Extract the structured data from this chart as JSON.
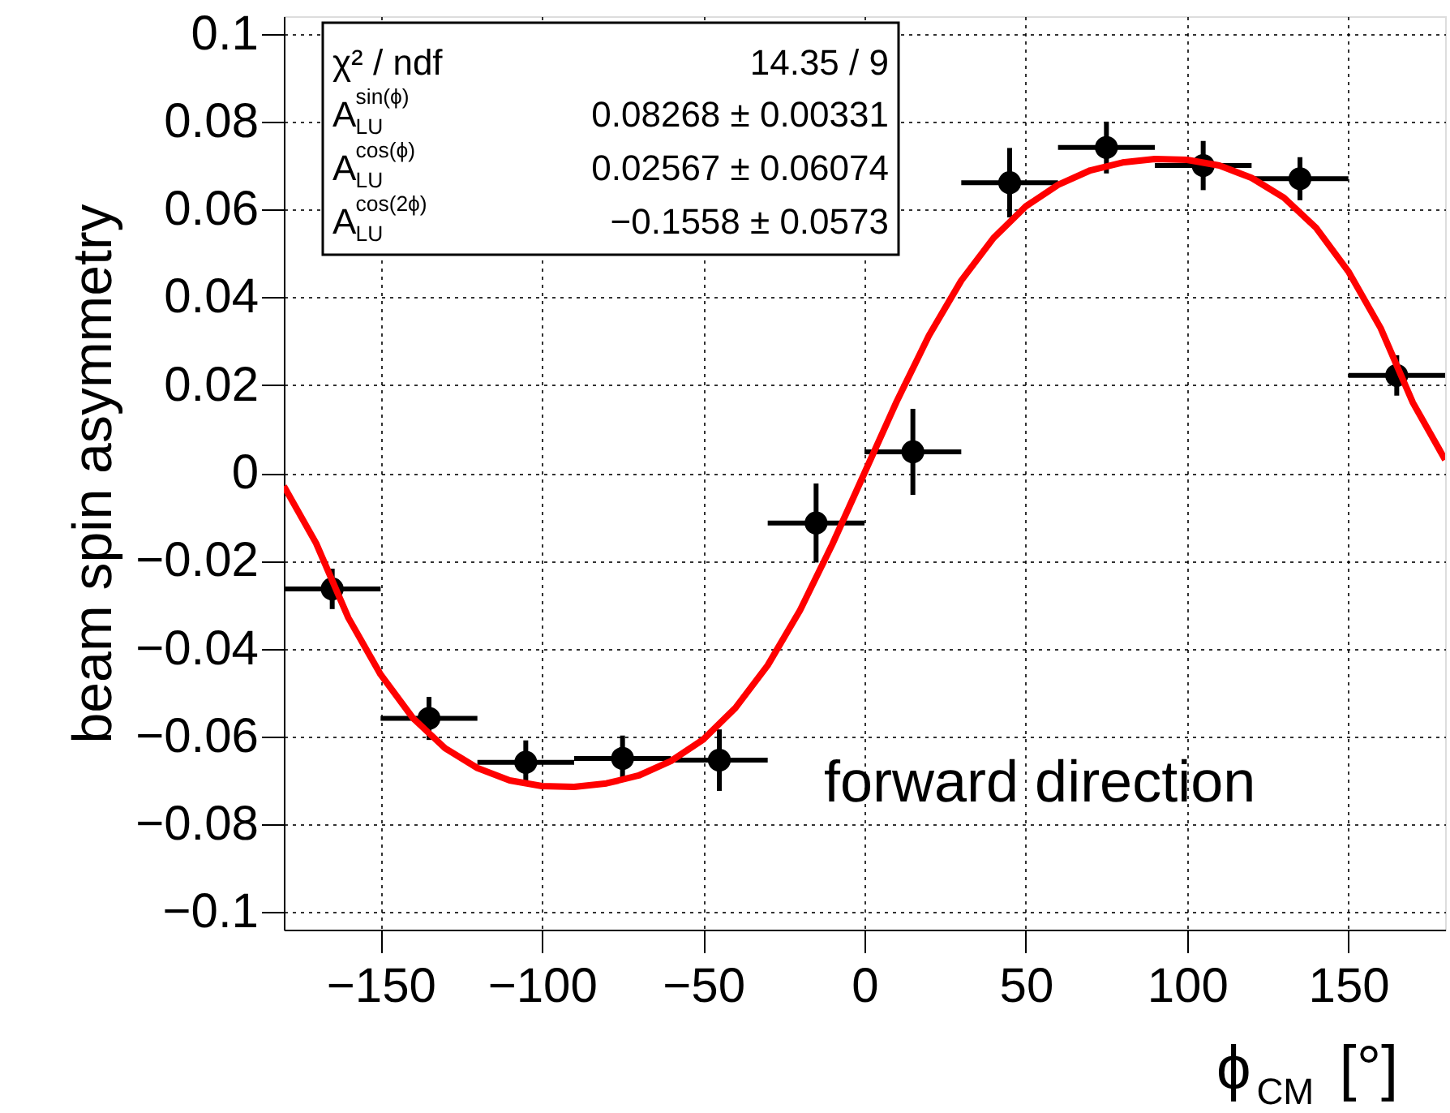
{
  "chart_data": {
    "type": "scatter",
    "xlabel": "ϕ$_{CM}$ [°]",
    "ylabel": "beam spin asymmetry",
    "x": [
      -165,
      -135,
      -105,
      -75,
      -45,
      -15,
      15,
      45,
      75,
      105,
      135,
      165
    ],
    "xlim": [
      -180,
      180
    ],
    "xticks": [
      -150,
      -100,
      -50,
      0,
      50,
      100,
      150
    ],
    "ylim": [
      -0.104,
      0.104
    ],
    "yticks": [
      -0.1,
      -0.08,
      -0.06,
      -0.04,
      -0.02,
      0,
      0.02,
      0.04,
      0.06,
      0.08,
      0.1
    ],
    "grid": true,
    "marker": "circle",
    "series": [
      {
        "color": "#000000",
        "values": [
          -0.0264,
          -0.0559,
          -0.0659,
          -0.065,
          -0.0654,
          -0.0114,
          0.0048,
          0.0661,
          0.0741,
          0.07,
          0.067,
          0.0222
        ],
        "errors": [
          0.0046,
          0.0049,
          0.005,
          0.0052,
          0.007,
          0.009,
          0.0098,
          0.0079,
          0.0059,
          0.0056,
          0.0049,
          0.0046
        ],
        "xerrors": [
          15,
          15,
          15,
          15,
          15,
          15,
          15,
          15,
          15,
          15,
          15,
          15
        ]
      },
      {
        "type": "line",
        "color": "#ff0000",
        "line_style": "solid",
        "marker": "none",
        "x": [
          -180,
          -170,
          -160,
          -150,
          -140,
          -130,
          -120,
          -110,
          -100,
          -90,
          -80,
          -70,
          -60,
          -50,
          -40,
          -30,
          -20,
          -10,
          0,
          10,
          20,
          30,
          40,
          50,
          60,
          70,
          80,
          90,
          100,
          110,
          120,
          130,
          140,
          150,
          160,
          170,
          180
        ],
        "values": [
          -0.003,
          -0.016,
          -0.033,
          -0.0459,
          -0.0558,
          -0.0627,
          -0.0672,
          -0.07,
          -0.0713,
          -0.0715,
          -0.0707,
          -0.0689,
          -0.0656,
          -0.0607,
          -0.0535,
          -0.0438,
          -0.0313,
          -0.0163,
          0,
          0.0163,
          0.0313,
          0.0438,
          0.0535,
          0.0607,
          0.0656,
          0.0689,
          0.0707,
          0.0715,
          0.0713,
          0.07,
          0.0672,
          0.0627,
          0.0558,
          0.0459,
          0.033,
          0.016,
          0.003
        ]
      }
    ],
    "annotations": [
      "χ² / ndf",
      "14.35 / 9",
      "A$^{sin(ϕ)}$$_{LU}$",
      "0.08268 ± 0.00331",
      "A$^{cos(ϕ)}$$_{LU}$",
      "0.02567 ± 0.06074",
      "A$^{cos(2ϕ)}$$_{LU}$",
      "−0.1558 ± 0.0573",
      "forward direction"
    ]
  }
}
